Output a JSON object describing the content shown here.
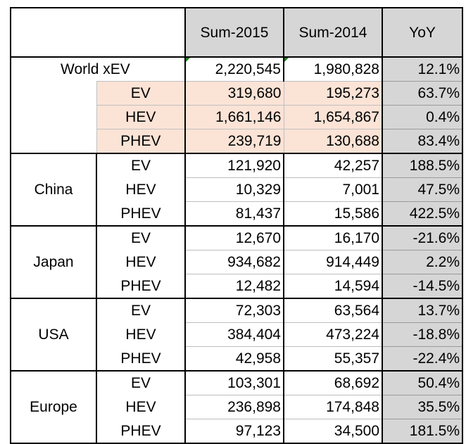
{
  "chart_data": {
    "type": "table",
    "columns": [
      "",
      "",
      "Sum-2015",
      "Sum-2014",
      "YoY"
    ],
    "world": {
      "label": "World xEV",
      "total": {
        "sum2015": "2,220,545",
        "sum2014": "1,980,828",
        "yoy": "12.1%"
      },
      "rows": [
        {
          "type": "EV",
          "sum2015": "319,680",
          "sum2014": "195,273",
          "yoy": "63.7%"
        },
        {
          "type": "HEV",
          "sum2015": "1,661,146",
          "sum2014": "1,654,867",
          "yoy": "0.4%"
        },
        {
          "type": "PHEV",
          "sum2015": "239,719",
          "sum2014": "130,688",
          "yoy": "83.4%"
        }
      ]
    },
    "regions": [
      {
        "name": "China",
        "rows": [
          {
            "type": "EV",
            "sum2015": "121,920",
            "sum2014": "42,257",
            "yoy": "188.5%"
          },
          {
            "type": "HEV",
            "sum2015": "10,329",
            "sum2014": "7,001",
            "yoy": "47.5%"
          },
          {
            "type": "PHEV",
            "sum2015": "81,437",
            "sum2014": "15,586",
            "yoy": "422.5%"
          }
        ]
      },
      {
        "name": "Japan",
        "rows": [
          {
            "type": "EV",
            "sum2015": "12,670",
            "sum2014": "16,170",
            "yoy": "-21.6%"
          },
          {
            "type": "HEV",
            "sum2015": "934,682",
            "sum2014": "914,449",
            "yoy": "2.2%"
          },
          {
            "type": "PHEV",
            "sum2015": "12,482",
            "sum2014": "14,594",
            "yoy": "-14.5%"
          }
        ]
      },
      {
        "name": "USA",
        "rows": [
          {
            "type": "EV",
            "sum2015": "72,303",
            "sum2014": "63,564",
            "yoy": "13.7%"
          },
          {
            "type": "HEV",
            "sum2015": "384,404",
            "sum2014": "473,224",
            "yoy": "-18.8%"
          },
          {
            "type": "PHEV",
            "sum2015": "42,958",
            "sum2014": "55,357",
            "yoy": "-22.4%"
          }
        ]
      },
      {
        "name": "Europe",
        "rows": [
          {
            "type": "EV",
            "sum2015": "103,301",
            "sum2014": "68,692",
            "yoy": "50.4%"
          },
          {
            "type": "HEV",
            "sum2015": "236,898",
            "sum2014": "174,848",
            "yoy": "35.5%"
          },
          {
            "type": "PHEV",
            "sum2015": "97,123",
            "sum2014": "34,500",
            "yoy": "181.5%"
          }
        ]
      }
    ],
    "colors": {
      "header": "#d6d6d6",
      "yoy": "#d6d6d6",
      "world_highlight": "#fbe3d6"
    }
  }
}
